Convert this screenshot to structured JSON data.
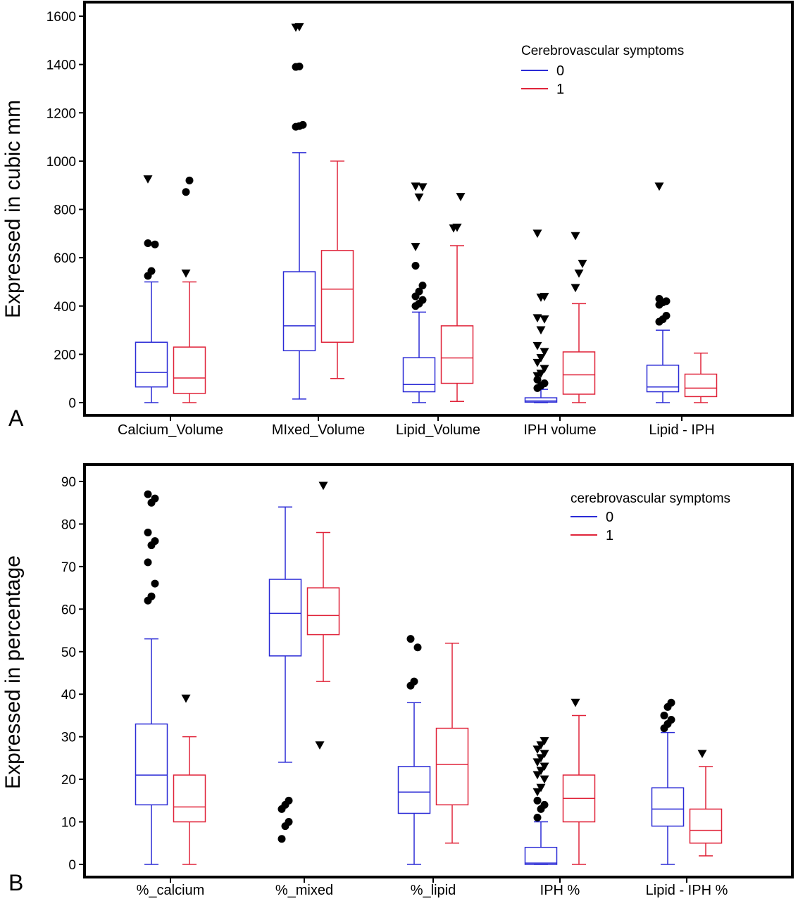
{
  "chart_data": [
    {
      "type": "box",
      "panel_label": "A",
      "ylabel": "Expressed in cubic mm",
      "ylim": [
        0,
        1650
      ],
      "yticks": [
        0,
        200,
        400,
        600,
        800,
        1000,
        1200,
        1400,
        1600
      ],
      "grid": false,
      "legend": {
        "title": "Cerebrovascular symptoms",
        "placement": "top-right",
        "entries": [
          {
            "label": "0",
            "color": "#2b2bd6"
          },
          {
            "label": "1",
            "color": "#e0243a"
          }
        ]
      },
      "categories": [
        "Calcium_Volume",
        "MIxed_Volume",
        "Lipid_Volume",
        "IPH volume",
        "Lipid - IPH"
      ],
      "series": [
        {
          "name": "0",
          "color": "#2b2bd6",
          "boxes": [
            {
              "whisker_low": 0,
              "q1": 65,
              "median": 125,
              "q3": 250,
              "whisker_high": 500,
              "outliers": [
                525,
                545,
                655,
                660
              ],
              "far_outliers": [
                925
              ]
            },
            {
              "whisker_low": 15,
              "q1": 215,
              "median": 318,
              "q3": 542,
              "whisker_high": 1035,
              "outliers": [
                1142,
                1145,
                1150,
                1390,
                1392
              ],
              "far_outliers": [
                1553,
                1555
              ]
            },
            {
              "whisker_low": 0,
              "q1": 45,
              "median": 75,
              "q3": 186,
              "whisker_high": 375,
              "outliers": [
                400,
                410,
                425,
                440,
                460,
                485,
                567
              ],
              "far_outliers": [
                645,
                850,
                892,
                895
              ]
            },
            {
              "whisker_low": 0,
              "q1": 2,
              "median": 7,
              "q3": 20,
              "whisker_high": 55,
              "outliers": [
                60,
                70,
                80,
                95
              ],
              "far_outliers": [
                110,
                120,
                140,
                165,
                185,
                210,
                235,
                300,
                345,
                350,
                435,
                438,
                700
              ]
            },
            {
              "whisker_low": 0,
              "q1": 45,
              "median": 65,
              "q3": 155,
              "whisker_high": 300,
              "outliers": [
                335,
                345,
                360,
                405,
                415,
                420,
                430
              ],
              "far_outliers": [
                895
              ]
            }
          ]
        },
        {
          "name": "1",
          "color": "#e0243a",
          "boxes": [
            {
              "whisker_low": 0,
              "q1": 38,
              "median": 102,
              "q3": 230,
              "whisker_high": 500,
              "outliers": [
                872,
                920
              ],
              "far_outliers": [
                535
              ]
            },
            {
              "whisker_low": 100,
              "q1": 250,
              "median": 470,
              "q3": 630,
              "whisker_high": 1000,
              "outliers": [],
              "far_outliers": []
            },
            {
              "whisker_low": 5,
              "q1": 80,
              "median": 185,
              "q3": 318,
              "whisker_high": 650,
              "outliers": [],
              "far_outliers": [
                722,
                725,
                852
              ]
            },
            {
              "whisker_low": 0,
              "q1": 35,
              "median": 115,
              "q3": 210,
              "whisker_high": 410,
              "outliers": [],
              "far_outliers": [
                475,
                535,
                575,
                690
              ]
            },
            {
              "whisker_low": 0,
              "q1": 25,
              "median": 60,
              "q3": 118,
              "whisker_high": 205,
              "outliers": [],
              "far_outliers": []
            }
          ]
        }
      ]
    },
    {
      "type": "box",
      "panel_label": "B",
      "ylabel": "Expressed in percentage",
      "ylim": [
        -2,
        93
      ],
      "yticks": [
        0,
        10,
        20,
        30,
        40,
        50,
        60,
        70,
        80,
        90
      ],
      "grid": false,
      "legend": {
        "title": "cerebrovascular symptoms",
        "placement": "top-right",
        "entries": [
          {
            "label": "0",
            "color": "#2b2bd6"
          },
          {
            "label": "1",
            "color": "#e0243a"
          }
        ]
      },
      "categories": [
        "%_calcium",
        "%_mixed",
        "%_lipid",
        "IPH %",
        "Lipid - IPH %"
      ],
      "series": [
        {
          "name": "0",
          "color": "#2b2bd6",
          "boxes": [
            {
              "whisker_low": 0,
              "q1": 14,
              "median": 21,
              "q3": 33,
              "whisker_high": 53,
              "outliers": [
                62,
                63,
                66,
                71,
                75,
                76,
                78,
                85,
                86,
                87
              ],
              "far_outliers": []
            },
            {
              "whisker_low": 24,
              "q1": 49,
              "median": 59,
              "q3": 67,
              "whisker_high": 84,
              "outliers": [
                6,
                9,
                10,
                13,
                14,
                15
              ],
              "far_outliers": []
            },
            {
              "whisker_low": 0,
              "q1": 12,
              "median": 17,
              "q3": 23,
              "whisker_high": 38,
              "outliers": [
                42,
                43,
                51,
                53
              ],
              "far_outliers": []
            },
            {
              "whisker_low": 0,
              "q1": 0,
              "median": 0.3,
              "q3": 4,
              "whisker_high": 10,
              "outliers": [
                11,
                13,
                14,
                15
              ],
              "far_outliers": [
                17,
                18,
                20,
                21,
                22,
                23,
                24,
                25,
                26,
                27,
                28,
                29
              ]
            },
            {
              "whisker_low": 0,
              "q1": 9,
              "median": 13,
              "q3": 18,
              "whisker_high": 31,
              "outliers": [
                32,
                33,
                34,
                35,
                37,
                38
              ],
              "far_outliers": []
            }
          ]
        },
        {
          "name": "1",
          "color": "#e0243a",
          "boxes": [
            {
              "whisker_low": 0,
              "q1": 10,
              "median": 13.5,
              "q3": 21,
              "whisker_high": 30,
              "outliers": [],
              "far_outliers": [
                39
              ]
            },
            {
              "whisker_low": 43,
              "q1": 54,
              "median": 58.5,
              "q3": 65,
              "whisker_high": 78,
              "outliers": [],
              "far_outliers": [
                28,
                89
              ]
            },
            {
              "whisker_low": 5,
              "q1": 14,
              "median": 23.5,
              "q3": 32,
              "whisker_high": 52,
              "outliers": [],
              "far_outliers": []
            },
            {
              "whisker_low": 0,
              "q1": 10,
              "median": 15.5,
              "q3": 21,
              "whisker_high": 35,
              "outliers": [],
              "far_outliers": [
                38
              ]
            },
            {
              "whisker_low": 2,
              "q1": 5,
              "median": 8,
              "q3": 13,
              "whisker_high": 23,
              "outliers": [],
              "far_outliers": [
                26
              ]
            }
          ]
        }
      ]
    }
  ]
}
